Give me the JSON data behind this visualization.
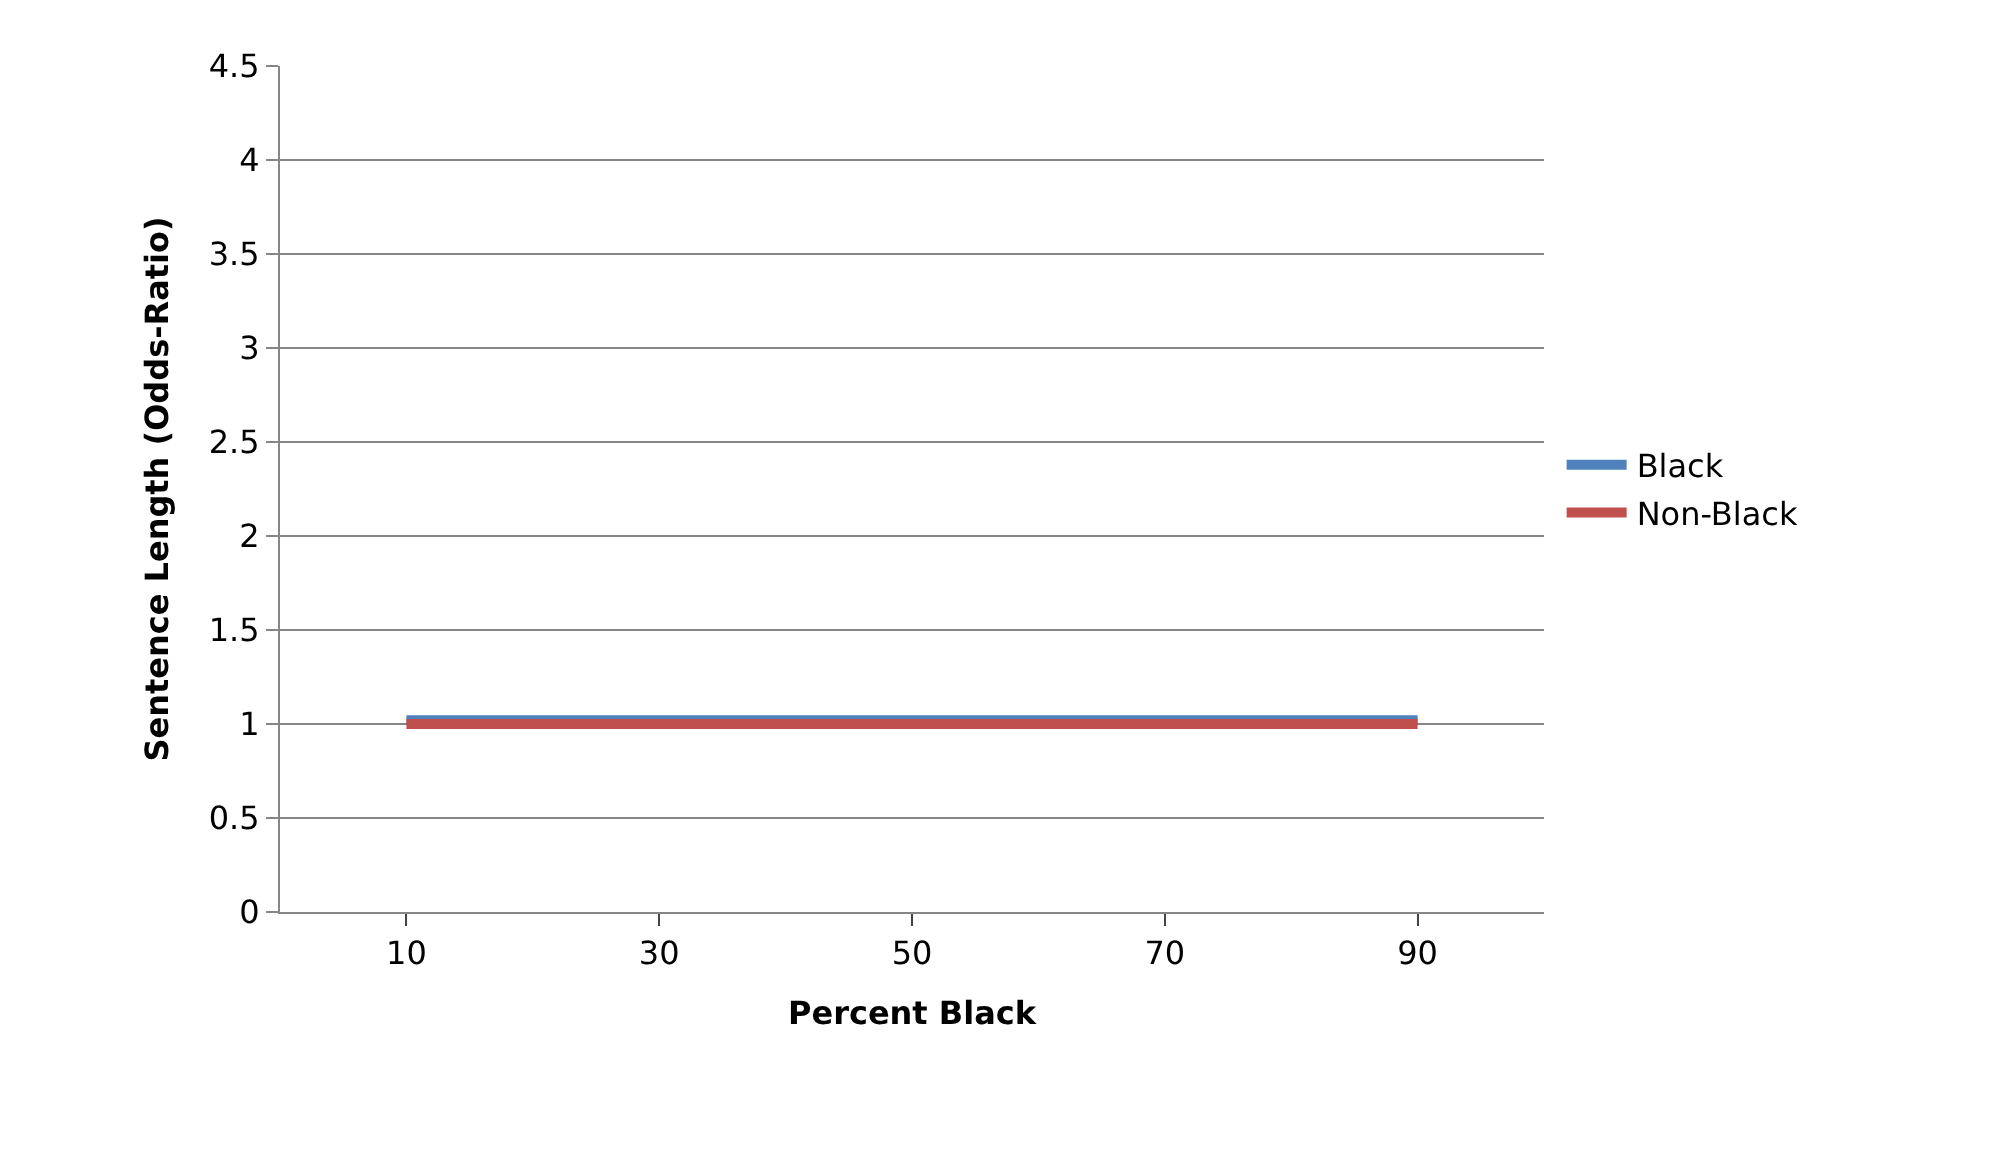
{
  "chart_data": {
    "type": "line",
    "xlabel": "Percent Black",
    "ylabel": "Sentence Length (Odds-Ratio)",
    "categories": [
      "10",
      "30",
      "50",
      "70",
      "90"
    ],
    "series": [
      {
        "name": "Black",
        "color": "#4f81bd",
        "values": [
          1.02,
          1.02,
          1.02,
          1.02,
          1.02
        ]
      },
      {
        "name": "Non-Black",
        "color": "#c0504d",
        "values": [
          1.0,
          1.0,
          1.0,
          1.0,
          1.0
        ]
      }
    ],
    "ylim": [
      0,
      4.5
    ],
    "yticks": [
      0,
      0.5,
      1,
      1.5,
      2,
      2.5,
      3,
      3.5,
      4,
      4.5
    ],
    "grid": "y",
    "legend": "right",
    "marker": "none",
    "line_style": "solid"
  }
}
